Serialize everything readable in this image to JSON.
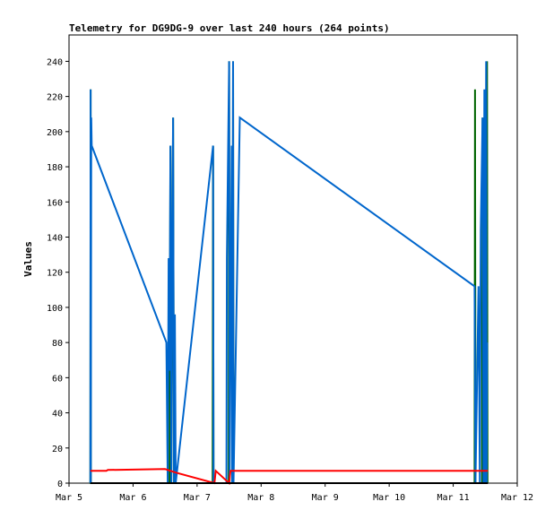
{
  "chart_data": {
    "type": "line",
    "title": "Telemetry for DG9DG-9 over last 240 hours (264 points)",
    "xlabel": "",
    "ylabel": "Values",
    "x_ticks": [
      "Mar 5",
      "Mar 6",
      "Mar 7",
      "Mar 8",
      "Mar 9",
      "Mar 10",
      "Mar 11",
      "Mar 12"
    ],
    "x_range": [
      "Mar 5",
      "Mar 12"
    ],
    "ylim": [
      0,
      255
    ],
    "y_ticks": [
      0,
      20,
      40,
      60,
      80,
      100,
      120,
      140,
      160,
      180,
      200,
      220,
      240
    ],
    "grid": false,
    "series": [
      {
        "color": "#006400",
        "points": [
          [
            "Mar 5 08:00",
            0
          ],
          [
            "Mar 5 08:05",
            224
          ],
          [
            "Mar 5 08:10",
            0
          ],
          [
            "Mar 6 13:40",
            0
          ],
          [
            "Mar 6 14:00",
            192
          ],
          [
            "Mar 6 14:20",
            0
          ],
          [
            "Mar 6 15:00",
            208
          ],
          [
            "Mar 6 15:20",
            0
          ],
          [
            "Mar 7 05:50",
            0
          ],
          [
            "Mar 7 06:00",
            192
          ],
          [
            "Mar 7 06:10",
            0
          ],
          [
            "Mar 7 11:50",
            0
          ],
          [
            "Mar 7 12:00",
            240
          ],
          [
            "Mar 7 12:10",
            0
          ],
          [
            "Mar 7 13:20",
            0
          ],
          [
            "Mar 7 13:30",
            240
          ],
          [
            "Mar 7 13:40",
            0
          ],
          [
            "Mar 11 08:00",
            0
          ],
          [
            "Mar 11 08:10",
            224
          ],
          [
            "Mar 11 08:20",
            0
          ],
          [
            "Mar 11 10:50",
            0
          ],
          [
            "Mar 11 11:00",
            208
          ],
          [
            "Mar 11 11:10",
            0
          ],
          [
            "Mar 11 12:30",
            0
          ],
          [
            "Mar 11 12:40",
            240
          ],
          [
            "Mar 11 12:50",
            0
          ]
        ]
      },
      {
        "color": "#0066cc",
        "points": [
          [
            "Mar 5 08:00",
            0
          ],
          [
            "Mar 5 08:05",
            224
          ],
          [
            "Mar 5 08:10",
            0
          ],
          [
            "Mar 5 08:20",
            208
          ],
          [
            "Mar 5 08:30",
            192
          ],
          [
            "Mar 6 12:30",
            80
          ],
          [
            "Mar 6 13:00",
            0
          ],
          [
            "Mar 6 13:20",
            128
          ],
          [
            "Mar 6 13:40",
            64
          ],
          [
            "Mar 6 14:00",
            192
          ],
          [
            "Mar 6 14:20",
            0
          ],
          [
            "Mar 6 14:40",
            128
          ],
          [
            "Mar 6 15:00",
            208
          ],
          [
            "Mar 6 15:20",
            0
          ],
          [
            "Mar 6 15:40",
            96
          ],
          [
            "Mar 6 16:00",
            0
          ],
          [
            "Mar 7 06:00",
            192
          ],
          [
            "Mar 7 06:10",
            0
          ],
          [
            "Mar 7 11:00",
            0
          ],
          [
            "Mar 7 11:10",
            128
          ],
          [
            "Mar 7 12:00",
            240
          ],
          [
            "Mar 7 12:10",
            0
          ],
          [
            "Mar 7 13:00",
            192
          ],
          [
            "Mar 7 13:10",
            0
          ],
          [
            "Mar 7 13:30",
            240
          ],
          [
            "Mar 7 13:40",
            0
          ],
          [
            "Mar 7 16:00",
            208
          ],
          [
            "Mar 11 08:00",
            112
          ],
          [
            "Mar 11 08:20",
            0
          ],
          [
            "Mar 11 09:30",
            112
          ],
          [
            "Mar 11 10:00",
            0
          ],
          [
            "Mar 11 10:20",
            144
          ],
          [
            "Mar 11 11:00",
            208
          ],
          [
            "Mar 11 11:20",
            0
          ],
          [
            "Mar 11 11:40",
            224
          ],
          [
            "Mar 11 12:00",
            0
          ],
          [
            "Mar 11 12:20",
            240
          ],
          [
            "Mar 11 12:30",
            0
          ],
          [
            "Mar 11 12:40",
            80
          ]
        ]
      },
      {
        "color": "#ff0000",
        "points": [
          [
            "Mar 5 08:00",
            7
          ],
          [
            "Mar 5 14:00",
            7
          ],
          [
            "Mar 5 14:30",
            7.5
          ],
          [
            "Mar 6 12:00",
            8
          ],
          [
            "Mar 6 16:00",
            6
          ],
          [
            "Mar 7 06:30",
            0
          ],
          [
            "Mar 7 07:00",
            7
          ],
          [
            "Mar 7 12:00",
            0
          ],
          [
            "Mar 7 12:30",
            7
          ],
          [
            "Mar 11 13:00",
            7
          ]
        ]
      },
      {
        "color": "#000000",
        "points": [
          [
            "Mar 5 08:00",
            0
          ],
          [
            "Mar 11 13:00",
            0
          ]
        ]
      }
    ]
  }
}
